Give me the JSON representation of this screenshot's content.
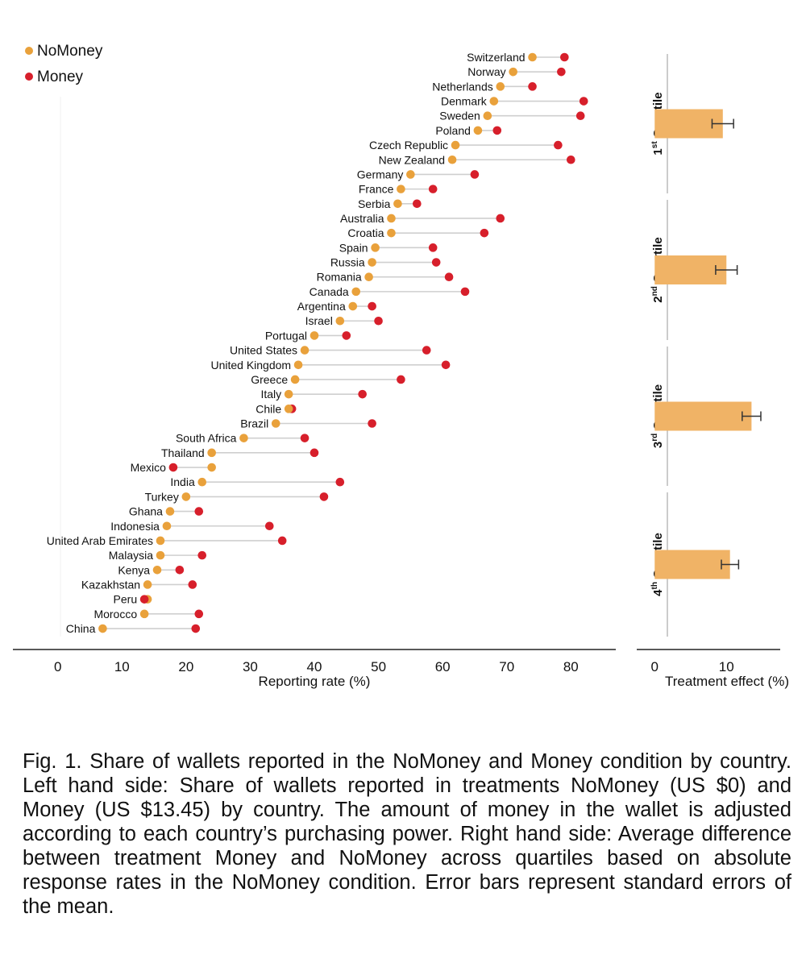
{
  "legend": {
    "nomoney_label": "NoMoney",
    "money_label": "Money"
  },
  "colors": {
    "nomoney": "#E9A13B",
    "money": "#D71F2B",
    "bar": "#F0B366",
    "connector": "#cfcfcf"
  },
  "chart_data": [
    {
      "type": "dumbbell",
      "title": "",
      "xlabel": "Reporting rate (%)",
      "ylabel": "",
      "xlim": [
        -7,
        87
      ],
      "xticks": [
        0,
        10,
        20,
        30,
        40,
        50,
        60,
        70,
        80
      ],
      "legend_position": "top-left",
      "series_names": [
        "NoMoney",
        "Money"
      ],
      "countries": [
        {
          "name": "Switzerland",
          "nomoney": 74,
          "money": 79
        },
        {
          "name": "Norway",
          "nomoney": 71,
          "money": 78.5
        },
        {
          "name": "Netherlands",
          "nomoney": 69,
          "money": 74
        },
        {
          "name": "Denmark",
          "nomoney": 68,
          "money": 82
        },
        {
          "name": "Sweden",
          "nomoney": 67,
          "money": 81.5
        },
        {
          "name": "Poland",
          "nomoney": 65.5,
          "money": 68.5
        },
        {
          "name": "Czech Republic",
          "nomoney": 62,
          "money": 78
        },
        {
          "name": "New Zealand",
          "nomoney": 61.5,
          "money": 80
        },
        {
          "name": "Germany",
          "nomoney": 55,
          "money": 65
        },
        {
          "name": "France",
          "nomoney": 53.5,
          "money": 58.5
        },
        {
          "name": "Serbia",
          "nomoney": 53,
          "money": 56
        },
        {
          "name": "Australia",
          "nomoney": 52,
          "money": 69
        },
        {
          "name": "Croatia",
          "nomoney": 52,
          "money": 66.5
        },
        {
          "name": "Spain",
          "nomoney": 49.5,
          "money": 58.5
        },
        {
          "name": "Russia",
          "nomoney": 49,
          "money": 59
        },
        {
          "name": "Romania",
          "nomoney": 48.5,
          "money": 61
        },
        {
          "name": "Canada",
          "nomoney": 46.5,
          "money": 63.5
        },
        {
          "name": "Argentina",
          "nomoney": 46,
          "money": 49
        },
        {
          "name": "Israel",
          "nomoney": 44,
          "money": 50
        },
        {
          "name": "Portugal",
          "nomoney": 40,
          "money": 45
        },
        {
          "name": "United States",
          "nomoney": 38.5,
          "money": 57.5
        },
        {
          "name": "United Kingdom",
          "nomoney": 37.5,
          "money": 60.5
        },
        {
          "name": "Greece",
          "nomoney": 37,
          "money": 53.5
        },
        {
          "name": "Italy",
          "nomoney": 36,
          "money": 47.5
        },
        {
          "name": "Chile",
          "nomoney": 36,
          "money": 36.5
        },
        {
          "name": "Brazil",
          "nomoney": 34,
          "money": 49
        },
        {
          "name": "South Africa",
          "nomoney": 29,
          "money": 38.5
        },
        {
          "name": "Thailand",
          "nomoney": 24,
          "money": 40
        },
        {
          "name": "Mexico",
          "nomoney": 24,
          "money": 18
        },
        {
          "name": "India",
          "nomoney": 22.5,
          "money": 44
        },
        {
          "name": "Turkey",
          "nomoney": 20,
          "money": 41.5
        },
        {
          "name": "Ghana",
          "nomoney": 17.5,
          "money": 22
        },
        {
          "name": "Indonesia",
          "nomoney": 17,
          "money": 33
        },
        {
          "name": "United Arab Emirates",
          "nomoney": 16,
          "money": 35
        },
        {
          "name": "Malaysia",
          "nomoney": 16,
          "money": 22.5
        },
        {
          "name": "Kenya",
          "nomoney": 15.5,
          "money": 19
        },
        {
          "name": "Kazakhstan",
          "nomoney": 14,
          "money": 21
        },
        {
          "name": "Peru",
          "nomoney": 14,
          "money": 13.5
        },
        {
          "name": "Morocco",
          "nomoney": 13.5,
          "money": 22
        },
        {
          "name": "China",
          "nomoney": 7,
          "money": 21.5
        }
      ]
    },
    {
      "type": "bar",
      "orientation": "horizontal",
      "title": "",
      "xlabel": "Treatment effect (%)",
      "xlim": [
        -2.5,
        17.5
      ],
      "xticks": [
        0,
        10
      ],
      "categories": [
        {
          "ordinal": "1",
          "suffix": "st",
          "label": "Quartile"
        },
        {
          "ordinal": "2",
          "suffix": "nd",
          "label": "Quartile"
        },
        {
          "ordinal": "3",
          "suffix": "rd",
          "label": "Quartile"
        },
        {
          "ordinal": "4",
          "suffix": "th",
          "label": "Quartile"
        }
      ],
      "values": [
        9.5,
        10,
        13.5,
        10.5
      ],
      "errors": [
        1.5,
        1.5,
        1.3,
        1.2
      ],
      "error_bars": "standard error of the mean"
    }
  ],
  "caption": {
    "title": "Fig. 1. Share of wallets reported in the NoMoney and Money condition by country.",
    "body": " Left hand side: Share of wallets reported in treatments NoMoney (US $0) and Money (US $13.45) by country. The amount of money in the wallet is adjusted according to each country’s purchasing power. Right hand side: Average difference between treatment Money and NoMoney across quartiles based on absolute response rates in the NoMoney condition. Error bars represent standard errors of the mean."
  }
}
